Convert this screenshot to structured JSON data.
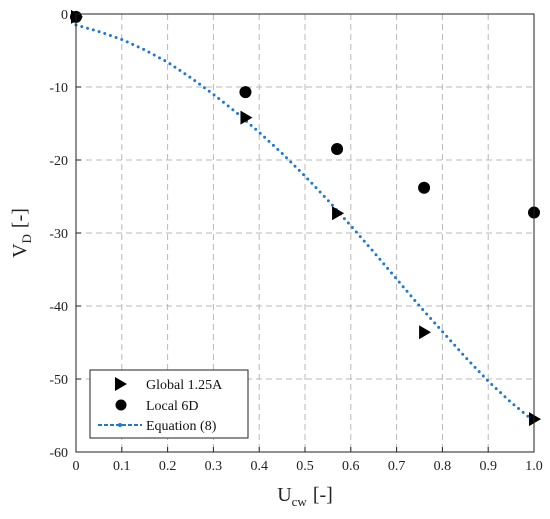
{
  "chart_data": {
    "type": "scatter",
    "title": "",
    "xlabel": {
      "main": "U",
      "sub": "cw",
      "unit": "[-]"
    },
    "ylabel": {
      "main": "V",
      "sub": "D",
      "unit": "[-]"
    },
    "xlim": [
      0,
      1.0
    ],
    "ylim": [
      -60,
      0
    ],
    "xticks": [
      0,
      0.1,
      0.2,
      0.3,
      0.4,
      0.5,
      0.6,
      0.7,
      0.8,
      0.9,
      1.0
    ],
    "xtick_labels": [
      "0",
      "0.1",
      "0.2",
      "0.3",
      "0.4",
      "0.5",
      "0.6",
      "0.7",
      "0.8",
      "0.9",
      "1.0"
    ],
    "yticks": [
      0,
      -10,
      -20,
      -30,
      -40,
      -50,
      -60
    ],
    "ytick_labels": [
      "0",
      "-10",
      "-20",
      "-30",
      "-40",
      "-50",
      "-60"
    ],
    "grid": true,
    "legend_position": "bottom-left",
    "series": [
      {
        "name": "Global 1.25A",
        "marker": "triangle-right",
        "color": "#000000",
        "points": [
          [
            0.0,
            -0.4
          ],
          [
            0.37,
            -14.2
          ],
          [
            0.57,
            -27.3
          ],
          [
            0.76,
            -43.6
          ],
          [
            1.0,
            -55.5
          ]
        ]
      },
      {
        "name": "Local 6D",
        "marker": "circle",
        "color": "#000000",
        "points": [
          [
            0.0,
            -0.4
          ],
          [
            0.37,
            -10.7
          ],
          [
            0.57,
            -18.5
          ],
          [
            0.76,
            -23.8
          ],
          [
            1.0,
            -27.2
          ]
        ]
      },
      {
        "name": "Equation (8)",
        "marker": "dotted-line",
        "color": "#1f77d4",
        "points": [
          [
            0.0,
            -1.5
          ],
          [
            0.05,
            -2.4
          ],
          [
            0.1,
            -3.5
          ],
          [
            0.15,
            -4.9
          ],
          [
            0.2,
            -6.6
          ],
          [
            0.25,
            -8.7
          ],
          [
            0.3,
            -11.0
          ],
          [
            0.35,
            -13.5
          ],
          [
            0.4,
            -16.2
          ],
          [
            0.45,
            -19.1
          ],
          [
            0.5,
            -22.2
          ],
          [
            0.55,
            -25.5
          ],
          [
            0.6,
            -29.0
          ],
          [
            0.65,
            -32.6
          ],
          [
            0.7,
            -36.3
          ],
          [
            0.75,
            -40.0
          ],
          [
            0.8,
            -43.5
          ],
          [
            0.85,
            -47.0
          ],
          [
            0.9,
            -50.3
          ],
          [
            0.95,
            -53.2
          ],
          [
            1.0,
            -55.8
          ]
        ]
      }
    ]
  }
}
